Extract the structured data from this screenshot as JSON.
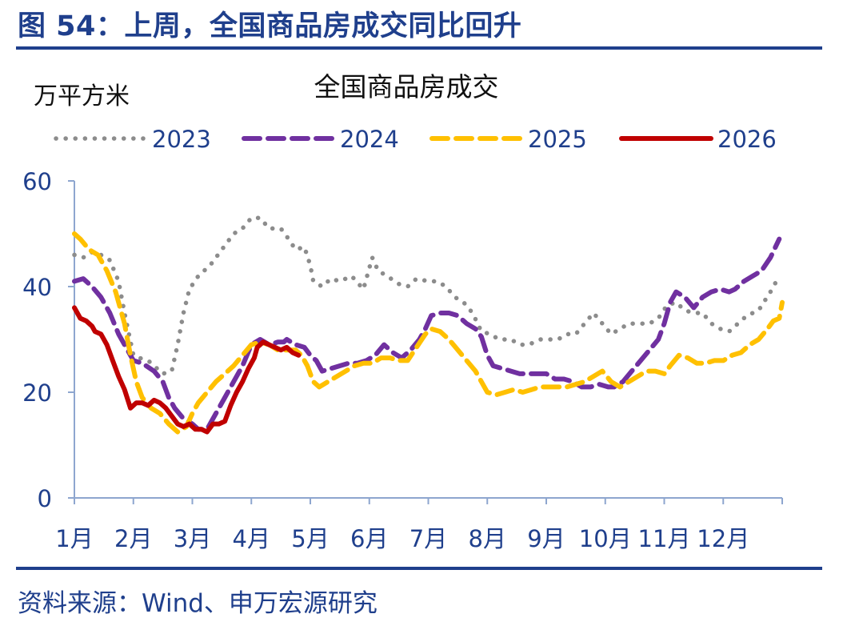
{
  "figure": {
    "title": "图 54：上周，全国商品房成交同比回升",
    "source": "资料来源：Wind、申万宏源研究"
  },
  "chart_data": {
    "type": "line",
    "title": "全国商品房成交",
    "ylabel": "万平方米",
    "xlabel": "",
    "ylim": [
      0,
      60
    ],
    "yticks": [
      0,
      20,
      40,
      60
    ],
    "xlim": [
      1,
      13
    ],
    "categories": [
      "1月",
      "2月",
      "3月",
      "4月",
      "5月",
      "6月",
      "7月",
      "8月",
      "9月",
      "10月",
      "11月",
      "12月"
    ],
    "grid": false,
    "legend_position": "top",
    "series": [
      {
        "name": "2023",
        "color": "#8c8c8c",
        "style": "dotted",
        "points": [
          [
            1.0,
            46
          ],
          [
            1.15,
            45.5
          ],
          [
            1.3,
            46.5
          ],
          [
            1.45,
            46
          ],
          [
            1.6,
            45
          ],
          [
            1.75,
            41
          ],
          [
            1.85,
            35
          ],
          [
            2.0,
            27
          ],
          [
            2.1,
            26.5
          ],
          [
            2.25,
            26
          ],
          [
            2.35,
            25
          ],
          [
            2.5,
            23.5
          ],
          [
            2.65,
            24
          ],
          [
            2.75,
            29
          ],
          [
            2.85,
            35
          ],
          [
            2.95,
            39.5
          ],
          [
            3.1,
            42
          ],
          [
            3.3,
            44
          ],
          [
            3.5,
            47
          ],
          [
            3.7,
            50
          ],
          [
            3.85,
            51
          ],
          [
            4.0,
            53
          ],
          [
            4.15,
            53
          ],
          [
            4.3,
            51
          ],
          [
            4.5,
            51
          ],
          [
            4.6,
            49.5
          ],
          [
            4.75,
            47
          ],
          [
            4.9,
            47.5
          ],
          [
            5.0,
            44
          ],
          [
            5.05,
            41
          ],
          [
            5.2,
            40
          ],
          [
            5.35,
            41.5
          ],
          [
            5.5,
            41
          ],
          [
            5.7,
            42
          ],
          [
            5.9,
            39.5
          ],
          [
            6.05,
            45.5
          ],
          [
            6.15,
            43
          ],
          [
            6.3,
            42
          ],
          [
            6.5,
            40.5
          ],
          [
            6.65,
            40
          ],
          [
            6.8,
            41.5
          ],
          [
            7.0,
            41
          ],
          [
            7.15,
            41
          ],
          [
            7.3,
            40
          ],
          [
            7.45,
            38
          ],
          [
            7.6,
            37
          ],
          [
            7.75,
            35
          ],
          [
            7.9,
            31.5
          ],
          [
            8.05,
            31
          ],
          [
            8.2,
            30
          ],
          [
            8.4,
            30
          ],
          [
            8.55,
            29
          ],
          [
            8.7,
            29
          ],
          [
            8.9,
            30
          ],
          [
            9.05,
            30
          ],
          [
            9.2,
            30
          ],
          [
            9.35,
            31
          ],
          [
            9.5,
            31
          ],
          [
            9.65,
            33
          ],
          [
            9.8,
            35
          ],
          [
            9.95,
            33
          ],
          [
            10.1,
            31
          ],
          [
            10.25,
            32
          ],
          [
            10.4,
            33
          ],
          [
            10.55,
            33
          ],
          [
            10.75,
            33
          ],
          [
            10.9,
            34
          ],
          [
            11.05,
            36.5
          ],
          [
            11.2,
            37
          ],
          [
            11.35,
            35.5
          ],
          [
            11.5,
            35
          ],
          [
            11.65,
            35
          ],
          [
            11.8,
            33
          ],
          [
            11.95,
            32
          ],
          [
            12.1,
            31.5
          ],
          [
            12.25,
            33
          ],
          [
            12.4,
            34.5
          ],
          [
            12.6,
            35.5
          ],
          [
            12.8,
            39
          ],
          [
            12.95,
            42
          ]
        ]
      },
      {
        "name": "2024",
        "color": "#7030a0",
        "style": "dashed",
        "points": [
          [
            1.0,
            41
          ],
          [
            1.15,
            41.5
          ],
          [
            1.3,
            40
          ],
          [
            1.45,
            38
          ],
          [
            1.6,
            35
          ],
          [
            1.75,
            31
          ],
          [
            1.85,
            29
          ],
          [
            2.0,
            26
          ],
          [
            2.15,
            25.5
          ],
          [
            2.35,
            24
          ],
          [
            2.5,
            22
          ],
          [
            2.6,
            19
          ],
          [
            2.7,
            17
          ],
          [
            2.85,
            15
          ],
          [
            3.0,
            14
          ],
          [
            3.1,
            13
          ],
          [
            3.25,
            13
          ],
          [
            3.4,
            16
          ],
          [
            3.55,
            19
          ],
          [
            3.7,
            22
          ],
          [
            3.85,
            25
          ],
          [
            4.0,
            29
          ],
          [
            4.15,
            30
          ],
          [
            4.3,
            29
          ],
          [
            4.45,
            29.5
          ],
          [
            4.55,
            29.5
          ],
          [
            4.6,
            30
          ],
          [
            4.75,
            29
          ],
          [
            4.9,
            28.5
          ],
          [
            5.0,
            27
          ],
          [
            5.1,
            26
          ],
          [
            5.2,
            24
          ],
          [
            5.35,
            24.5
          ],
          [
            5.5,
            25
          ],
          [
            5.65,
            25.5
          ],
          [
            5.8,
            25.5
          ],
          [
            5.95,
            26
          ],
          [
            6.1,
            27
          ],
          [
            6.25,
            29
          ],
          [
            6.4,
            27.5
          ],
          [
            6.55,
            26.5
          ],
          [
            6.7,
            28
          ],
          [
            6.85,
            30
          ],
          [
            6.95,
            32
          ],
          [
            7.05,
            34.5
          ],
          [
            7.2,
            35
          ],
          [
            7.35,
            35
          ],
          [
            7.5,
            34.5
          ],
          [
            7.65,
            33
          ],
          [
            7.8,
            32
          ],
          [
            7.9,
            30.5
          ],
          [
            8.0,
            27
          ],
          [
            8.1,
            25
          ],
          [
            8.25,
            24.5
          ],
          [
            8.4,
            24
          ],
          [
            8.55,
            23.5
          ],
          [
            8.7,
            23.5
          ],
          [
            8.85,
            23.5
          ],
          [
            9.0,
            23.5
          ],
          [
            9.15,
            22.5
          ],
          [
            9.3,
            22.5
          ],
          [
            9.45,
            22
          ],
          [
            9.6,
            21
          ],
          [
            9.75,
            21
          ],
          [
            9.9,
            21.5
          ],
          [
            10.05,
            21
          ],
          [
            10.15,
            21
          ],
          [
            10.3,
            22
          ],
          [
            10.45,
            24
          ],
          [
            10.6,
            26
          ],
          [
            10.75,
            28
          ],
          [
            10.9,
            30
          ],
          [
            11.0,
            33
          ],
          [
            11.1,
            37
          ],
          [
            11.2,
            39
          ],
          [
            11.35,
            38
          ],
          [
            11.5,
            36
          ],
          [
            11.65,
            38
          ],
          [
            11.8,
            39
          ],
          [
            11.95,
            39.5
          ],
          [
            12.1,
            39
          ],
          [
            12.2,
            39.5
          ],
          [
            12.35,
            41
          ],
          [
            12.5,
            42
          ],
          [
            12.65,
            43
          ],
          [
            12.8,
            45.5
          ],
          [
            12.95,
            49
          ]
        ]
      },
      {
        "name": "2025",
        "color": "#ffc000",
        "style": "dashed",
        "points": [
          [
            1.0,
            50
          ],
          [
            1.1,
            49
          ],
          [
            1.25,
            47
          ],
          [
            1.4,
            46
          ],
          [
            1.55,
            43
          ],
          [
            1.7,
            39
          ],
          [
            1.85,
            33
          ],
          [
            1.95,
            27
          ],
          [
            2.05,
            22
          ],
          [
            2.15,
            19
          ],
          [
            2.3,
            17
          ],
          [
            2.45,
            16
          ],
          [
            2.6,
            14
          ],
          [
            2.75,
            12.5
          ],
          [
            2.9,
            13.5
          ],
          [
            3.0,
            16
          ],
          [
            3.1,
            18
          ],
          [
            3.25,
            20
          ],
          [
            3.4,
            22
          ],
          [
            3.55,
            23.5
          ],
          [
            3.7,
            25
          ],
          [
            3.85,
            27
          ],
          [
            4.0,
            29
          ],
          [
            4.15,
            29.5
          ],
          [
            4.3,
            29
          ],
          [
            4.45,
            28
          ],
          [
            4.6,
            28
          ],
          [
            4.75,
            28
          ],
          [
            4.85,
            27
          ],
          [
            4.95,
            25
          ],
          [
            5.05,
            22
          ],
          [
            5.15,
            21
          ],
          [
            5.3,
            22
          ],
          [
            5.45,
            23
          ],
          [
            5.6,
            24
          ],
          [
            5.75,
            25
          ],
          [
            5.9,
            25.5
          ],
          [
            6.05,
            25.5
          ],
          [
            6.2,
            26.5
          ],
          [
            6.35,
            26.5
          ],
          [
            6.5,
            26
          ],
          [
            6.65,
            26
          ],
          [
            6.8,
            28.5
          ],
          [
            6.95,
            31
          ],
          [
            7.05,
            32
          ],
          [
            7.2,
            31.5
          ],
          [
            7.35,
            30
          ],
          [
            7.5,
            28
          ],
          [
            7.65,
            26
          ],
          [
            7.8,
            24
          ],
          [
            7.9,
            22
          ],
          [
            8.0,
            20
          ],
          [
            8.15,
            19.5
          ],
          [
            8.3,
            20
          ],
          [
            8.45,
            20.5
          ],
          [
            8.6,
            20
          ],
          [
            8.75,
            20.5
          ],
          [
            8.9,
            21
          ],
          [
            9.05,
            21
          ],
          [
            9.2,
            21
          ],
          [
            9.35,
            21
          ],
          [
            9.5,
            21.5
          ],
          [
            9.65,
            22
          ],
          [
            9.8,
            23
          ],
          [
            9.95,
            24
          ],
          [
            10.1,
            22
          ],
          [
            10.25,
            21
          ],
          [
            10.4,
            22
          ],
          [
            10.55,
            23
          ],
          [
            10.7,
            24
          ],
          [
            10.85,
            24
          ],
          [
            11.0,
            23.5
          ],
          [
            11.1,
            25
          ],
          [
            11.25,
            27
          ],
          [
            11.4,
            26.5
          ],
          [
            11.55,
            25.5
          ],
          [
            11.7,
            25.5
          ],
          [
            11.85,
            26
          ],
          [
            12.0,
            26
          ],
          [
            12.15,
            27
          ],
          [
            12.3,
            27.5
          ],
          [
            12.45,
            29
          ],
          [
            12.6,
            30
          ],
          [
            12.75,
            32
          ],
          [
            12.85,
            33.5
          ],
          [
            12.95,
            34
          ],
          [
            13.0,
            37
          ]
        ]
      },
      {
        "name": "2026",
        "color": "#c00000",
        "style": "solid",
        "points": [
          [
            1.0,
            36
          ],
          [
            1.1,
            34
          ],
          [
            1.2,
            33.5
          ],
          [
            1.3,
            32.5
          ],
          [
            1.35,
            31.5
          ],
          [
            1.45,
            31
          ],
          [
            1.55,
            29
          ],
          [
            1.65,
            26
          ],
          [
            1.75,
            23
          ],
          [
            1.85,
            20.5
          ],
          [
            1.95,
            17
          ],
          [
            2.05,
            18
          ],
          [
            2.15,
            18
          ],
          [
            2.25,
            17.5
          ],
          [
            2.35,
            18.5
          ],
          [
            2.45,
            18
          ],
          [
            2.55,
            17
          ],
          [
            2.65,
            15.5
          ],
          [
            2.75,
            14
          ],
          [
            2.85,
            13.5
          ],
          [
            2.95,
            14
          ],
          [
            3.05,
            13
          ],
          [
            3.15,
            13
          ],
          [
            3.25,
            12.5
          ],
          [
            3.35,
            14
          ],
          [
            3.45,
            14
          ],
          [
            3.55,
            14.5
          ],
          [
            3.65,
            17.5
          ],
          [
            3.75,
            20
          ],
          [
            3.85,
            22
          ],
          [
            3.95,
            24.5
          ],
          [
            4.05,
            26.5
          ],
          [
            4.1,
            28.5
          ],
          [
            4.2,
            29.5
          ],
          [
            4.3,
            29
          ],
          [
            4.4,
            28.5
          ],
          [
            4.5,
            28
          ],
          [
            4.6,
            28.5
          ],
          [
            4.7,
            27.5
          ],
          [
            4.8,
            27
          ]
        ]
      }
    ]
  }
}
